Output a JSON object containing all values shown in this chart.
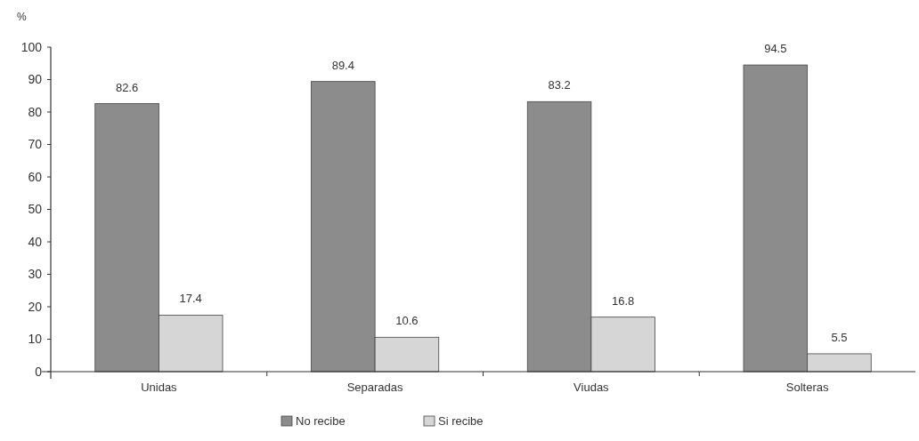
{
  "chart_data": {
    "type": "bar",
    "ylabel": "%",
    "categories": [
      "Unidas",
      "Separadas",
      "Viudas",
      "Solteras"
    ],
    "series": [
      {
        "name": "No recibe",
        "color": "#8c8c8c",
        "values": [
          82.6,
          89.4,
          83.2,
          94.5
        ]
      },
      {
        "name": "Si recibe",
        "color": "#d6d6d6",
        "values": [
          17.4,
          10.6,
          16.8,
          5.5
        ]
      }
    ],
    "ylim": [
      0,
      100
    ],
    "yticks": [
      0,
      10,
      20,
      30,
      40,
      50,
      60,
      70,
      80,
      90,
      100
    ],
    "data_labels": true,
    "legend": "bottom",
    "grid": false
  }
}
